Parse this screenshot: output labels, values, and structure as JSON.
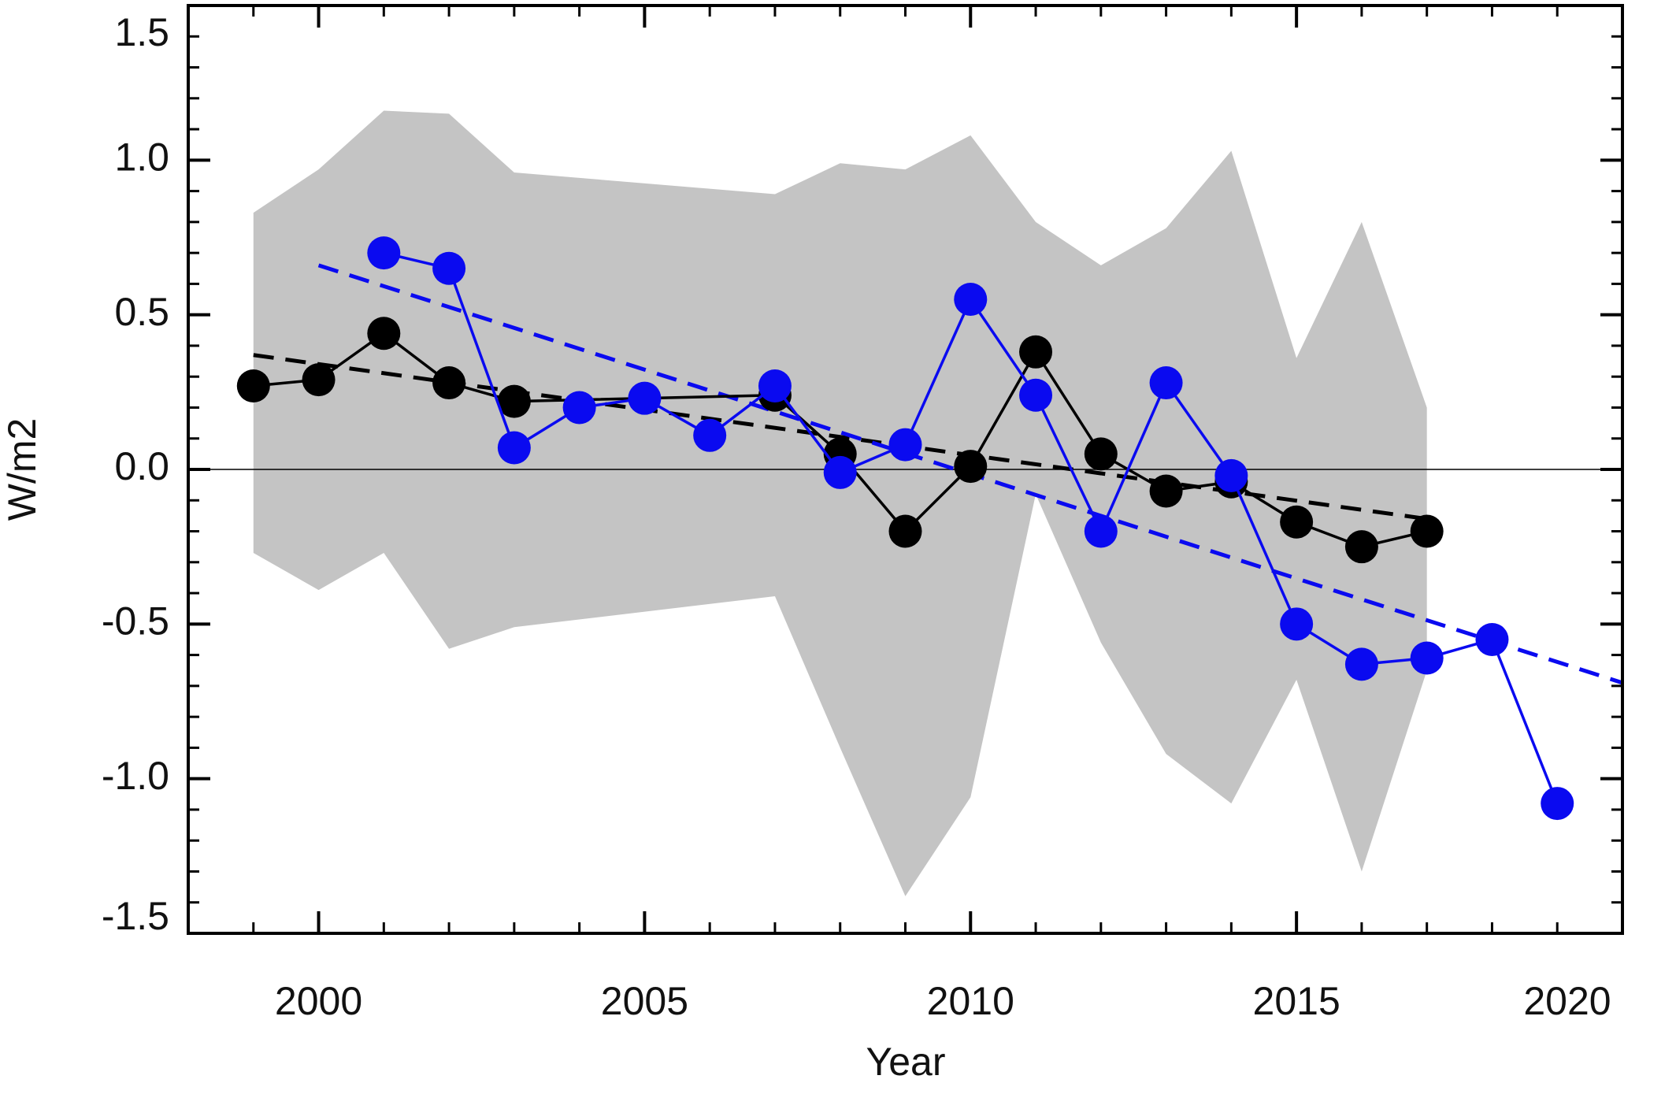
{
  "chart_data": {
    "type": "line",
    "xlabel": "Year",
    "ylabel": "W/m2",
    "xlim": [
      1998,
      2020
    ],
    "ylim": [
      -1.5,
      1.5
    ],
    "xticks": [
      2000,
      2005,
      2010,
      2015,
      2020
    ],
    "yticks": [
      -1.5,
      {
        "value": -1.0,
        "label": "-1.0"
      },
      -0.5,
      {
        "value": 0,
        "label": "0.0"
      },
      0.5,
      {
        "value": 1.0,
        "label": "1.0"
      },
      1.5
    ],
    "minor_ticks_per_major": 5,
    "hline": 0,
    "band": {
      "color": "#c4c4c4",
      "x": [
        1999,
        2000,
        2001,
        2002,
        2003,
        2007,
        2008,
        2009,
        2010,
        2011,
        2012,
        2013,
        2014,
        2015,
        2016,
        2017
      ],
      "upper": [
        0.83,
        0.97,
        1.16,
        1.15,
        0.96,
        0.89,
        0.99,
        0.97,
        1.08,
        0.8,
        0.66,
        0.78,
        1.03,
        0.36,
        0.8,
        0.2
      ],
      "lower": [
        -0.27,
        -0.39,
        -0.27,
        -0.58,
        -0.51,
        -0.41,
        -0.9,
        -1.38,
        -1.06,
        -0.08,
        -0.56,
        -0.92,
        -1.08,
        -0.68,
        -1.3,
        -0.65
      ]
    },
    "series": [
      {
        "color": "#000000",
        "style": "dashed",
        "markers": false,
        "x": [
          1999,
          2017
        ],
        "values": [
          0.37,
          -0.16
        ]
      },
      {
        "color": "#0a0af0",
        "style": "dashed",
        "markers": false,
        "x": [
          2000,
          2020
        ],
        "values": [
          0.66,
          -0.69
        ]
      },
      {
        "color": "#000000",
        "style": "solid",
        "markers": true,
        "x": [
          1999,
          2000,
          2001,
          2002,
          2003,
          2007,
          2008,
          2009,
          2010,
          2011,
          2012,
          2013,
          2014,
          2015,
          2016,
          2017
        ],
        "values": [
          0.27,
          0.29,
          0.44,
          0.28,
          0.22,
          0.24,
          0.05,
          -0.2,
          0.01,
          0.38,
          0.05,
          -0.07,
          -0.04,
          -0.17,
          -0.25,
          -0.2
        ]
      },
      {
        "color": "#0a0af0",
        "style": "solid",
        "markers": true,
        "x": [
          2001,
          2002,
          2003,
          2004,
          2005,
          2006,
          2007,
          2008,
          2009,
          2010,
          2011,
          2012,
          2013,
          2014,
          2015,
          2016,
          2017,
          2018,
          2019
        ],
        "values": [
          0.7,
          0.65,
          0.07,
          0.2,
          0.23,
          0.11,
          0.27,
          -0.01,
          0.08,
          0.55,
          0.24,
          -0.2,
          0.28,
          -0.02,
          -0.5,
          -0.63,
          -0.61,
          -0.55,
          -1.08
        ]
      }
    ]
  }
}
